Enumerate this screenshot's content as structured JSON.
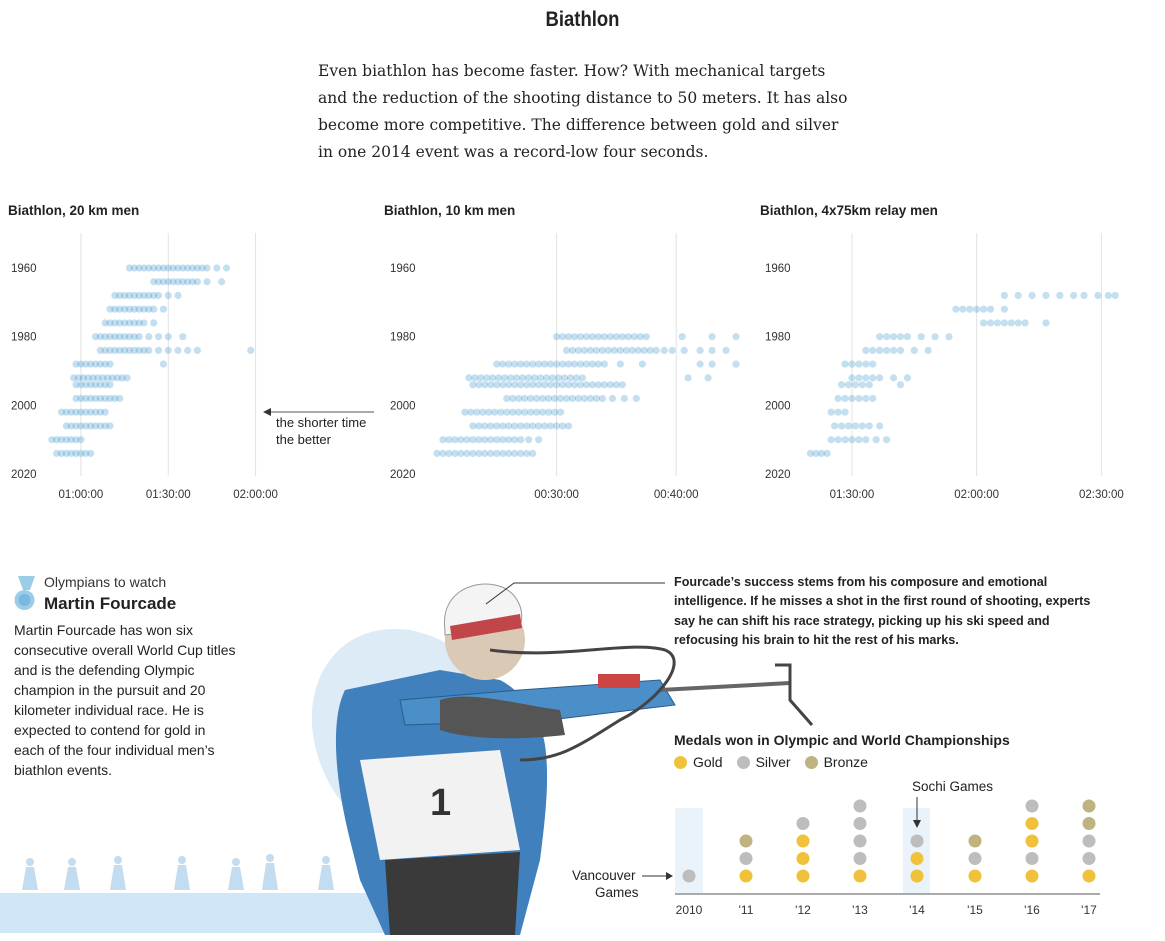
{
  "header": {
    "title": "Biathlon",
    "intro": "Even biathlon has become faster. How? With mechanical targets and the reduction of the shooting distance to 50 meters. It has also become more competitive. The difference between gold and silver in one 2014 event was a record-low four seconds."
  },
  "colors": {
    "dot": "#2a8bc4",
    "gold": "#f0c23c",
    "silver": "#bdbdbd",
    "bronze": "#bfb381",
    "athlete_blue": "#4a8fc8",
    "bg_wash": "#cfe3f2"
  },
  "chart_data": [
    {
      "type": "scatter",
      "title": "Biathlon, 20 km men",
      "x_unit": "race time (seconds)",
      "xticks": [
        "01:00:00",
        "01:30:00",
        "02:00:00"
      ],
      "xlim": [
        2880,
        9600
      ],
      "yticks": [
        "1960",
        "1980",
        "2000",
        "2020"
      ],
      "ylim": [
        1957,
        2020
      ],
      "grid": true,
      "annotation": {
        "line1": "the shorter time",
        "line2": "the better"
      },
      "years": [
        {
          "year": 1960,
          "times": [
            4600,
            4700,
            4800,
            4900,
            5000,
            5100,
            5200,
            5300,
            5400,
            5500,
            5600,
            5700,
            5800,
            5900,
            6000,
            6100,
            6200,
            6400,
            6600
          ]
        },
        {
          "year": 1964,
          "times": [
            5100,
            5200,
            5300,
            5400,
            5500,
            5600,
            5700,
            5800,
            5900,
            6000,
            6200,
            6500
          ]
        },
        {
          "year": 1968,
          "times": [
            4300,
            4400,
            4500,
            4600,
            4700,
            4800,
            4900,
            5000,
            5100,
            5200,
            5400,
            5600
          ]
        },
        {
          "year": 1972,
          "times": [
            4200,
            4300,
            4400,
            4500,
            4600,
            4700,
            4800,
            4900,
            5000,
            5100,
            5300
          ]
        },
        {
          "year": 1976,
          "times": [
            4100,
            4200,
            4300,
            4400,
            4500,
            4600,
            4700,
            4800,
            4900,
            5100
          ]
        },
        {
          "year": 1980,
          "times": [
            3900,
            4000,
            4100,
            4200,
            4300,
            4400,
            4500,
            4600,
            4700,
            4800,
            5000,
            5200,
            5400,
            5700
          ]
        },
        {
          "year": 1984,
          "times": [
            4000,
            4100,
            4200,
            4300,
            4400,
            4500,
            4600,
            4700,
            4800,
            4900,
            5000,
            5200,
            5400,
            5600,
            5800,
            6000,
            7100
          ]
        },
        {
          "year": 1988,
          "times": [
            3500,
            3600,
            3700,
            3800,
            3900,
            4000,
            4100,
            4200,
            5300
          ]
        },
        {
          "year": 1992,
          "times": [
            3450,
            3550,
            3650,
            3750,
            3850,
            3950,
            4050,
            4150,
            4250,
            4350,
            4450,
            4550
          ]
        },
        {
          "year": 1994,
          "times": [
            3500,
            3600,
            3700,
            3800,
            3900,
            4000,
            4100,
            4200
          ]
        },
        {
          "year": 1998,
          "times": [
            3500,
            3600,
            3700,
            3800,
            3900,
            4000,
            4100,
            4200,
            4300,
            4400
          ]
        },
        {
          "year": 2002,
          "times": [
            3200,
            3300,
            3400,
            3500,
            3600,
            3700,
            3800,
            3900,
            4000,
            4100
          ]
        },
        {
          "year": 2006,
          "times": [
            3300,
            3400,
            3500,
            3600,
            3700,
            3800,
            3900,
            4000,
            4100,
            4200
          ]
        },
        {
          "year": 2010,
          "times": [
            3000,
            3100,
            3200,
            3300,
            3400,
            3500,
            3600
          ]
        },
        {
          "year": 2014,
          "times": [
            3100,
            3200,
            3300,
            3400,
            3500,
            3600,
            3700,
            3800
          ]
        }
      ]
    },
    {
      "type": "scatter",
      "title": "Biathlon, 10 km men",
      "x_unit": "race time (seconds)",
      "xticks": [
        "00:30:00",
        "00:40:00"
      ],
      "xlim": [
        1140,
        2730
      ],
      "yticks": [
        "1960",
        "1980",
        "2000",
        "2020"
      ],
      "ylim": [
        1957,
        2020
      ],
      "grid": true,
      "years": [
        {
          "year": 1980,
          "times": [
            1800,
            1830,
            1860,
            1890,
            1920,
            1950,
            1980,
            2010,
            2040,
            2070,
            2100,
            2130,
            2160,
            2190,
            2220,
            2250,
            2430,
            2580,
            2700
          ]
        },
        {
          "year": 1984,
          "times": [
            1850,
            1880,
            1910,
            1940,
            1970,
            2000,
            2030,
            2060,
            2090,
            2120,
            2150,
            2180,
            2210,
            2240,
            2270,
            2300,
            2340,
            2380,
            2440,
            2520,
            2580,
            2650
          ]
        },
        {
          "year": 1988,
          "times": [
            1500,
            1530,
            1560,
            1590,
            1620,
            1650,
            1680,
            1710,
            1740,
            1770,
            1800,
            1830,
            1860,
            1890,
            1920,
            1950,
            1980,
            2010,
            2040,
            2120,
            2230,
            2520,
            2580,
            2700
          ]
        },
        {
          "year": 1992,
          "times": [
            1360,
            1390,
            1420,
            1450,
            1480,
            1510,
            1540,
            1570,
            1600,
            1630,
            1660,
            1690,
            1720,
            1750,
            1780,
            1810,
            1840,
            1870,
            1900,
            1930,
            2460,
            2560
          ]
        },
        {
          "year": 1994,
          "times": [
            1380,
            1410,
            1440,
            1470,
            1500,
            1530,
            1560,
            1590,
            1620,
            1650,
            1680,
            1710,
            1740,
            1770,
            1800,
            1830,
            1860,
            1890,
            1920,
            1950,
            1980,
            2010,
            2040,
            2070,
            2100,
            2130
          ]
        },
        {
          "year": 1998,
          "times": [
            1550,
            1580,
            1610,
            1640,
            1670,
            1700,
            1730,
            1760,
            1790,
            1820,
            1850,
            1880,
            1910,
            1940,
            1970,
            2000,
            2030,
            2080,
            2140,
            2200
          ]
        },
        {
          "year": 2002,
          "times": [
            1340,
            1370,
            1400,
            1430,
            1460,
            1490,
            1520,
            1550,
            1580,
            1610,
            1640,
            1670,
            1700,
            1730,
            1760,
            1790,
            1820
          ]
        },
        {
          "year": 2006,
          "times": [
            1380,
            1410,
            1440,
            1470,
            1500,
            1530,
            1560,
            1590,
            1620,
            1650,
            1680,
            1710,
            1740,
            1770,
            1800,
            1830,
            1860
          ]
        },
        {
          "year": 2010,
          "times": [
            1230,
            1260,
            1290,
            1320,
            1350,
            1380,
            1410,
            1440,
            1470,
            1500,
            1530,
            1560,
            1590,
            1620,
            1660,
            1710
          ]
        },
        {
          "year": 2014,
          "times": [
            1200,
            1230,
            1260,
            1290,
            1320,
            1350,
            1380,
            1410,
            1440,
            1470,
            1500,
            1530,
            1560,
            1590,
            1620,
            1650,
            1680
          ]
        }
      ]
    },
    {
      "type": "scatter",
      "title": "Biathlon, 4x75km relay men",
      "x_unit": "race time (seconds)",
      "xticks": [
        "01:30:00",
        "02:00:00",
        "02:30:00"
      ],
      "xlim": [
        4650,
        9240
      ],
      "yticks": [
        "1960",
        "1980",
        "2000",
        "2020"
      ],
      "ylim": [
        1957,
        2020
      ],
      "grid": true,
      "years": [
        {
          "year": 1968,
          "times": [
            7600,
            7800,
            8000,
            8200,
            8400,
            8600,
            8750,
            8950,
            9100,
            9200
          ]
        },
        {
          "year": 1972,
          "times": [
            6900,
            7000,
            7100,
            7200,
            7300,
            7400,
            7600
          ]
        },
        {
          "year": 1976,
          "times": [
            7300,
            7400,
            7500,
            7600,
            7700,
            7800,
            7900,
            8200
          ]
        },
        {
          "year": 1980,
          "times": [
            5800,
            5900,
            6000,
            6100,
            6200,
            6400,
            6600,
            6800
          ]
        },
        {
          "year": 1984,
          "times": [
            5600,
            5700,
            5800,
            5900,
            6000,
            6100,
            6300,
            6500
          ]
        },
        {
          "year": 1988,
          "times": [
            5300,
            5400,
            5500,
            5600,
            5700
          ]
        },
        {
          "year": 1992,
          "times": [
            5400,
            5500,
            5600,
            5700,
            5800,
            6000,
            6200
          ]
        },
        {
          "year": 1994,
          "times": [
            5250,
            5350,
            5450,
            5550,
            5650,
            6100
          ]
        },
        {
          "year": 1998,
          "times": [
            5200,
            5300,
            5400,
            5500,
            5600,
            5700
          ]
        },
        {
          "year": 2002,
          "times": [
            5100,
            5200,
            5300
          ]
        },
        {
          "year": 2006,
          "times": [
            5150,
            5250,
            5350,
            5450,
            5550,
            5650,
            5800
          ]
        },
        {
          "year": 2010,
          "times": [
            5100,
            5200,
            5300,
            5400,
            5500,
            5600,
            5750,
            5900
          ]
        },
        {
          "year": 2014,
          "times": [
            4800,
            4880,
            4960,
            5040
          ]
        }
      ]
    },
    {
      "type": "dot-matrix",
      "title": "Medals won in Olympic and World Championships",
      "legend": {
        "gold": "Gold",
        "silver": "Silver",
        "bronze": "Bronze"
      },
      "categories": [
        "2010",
        "'11",
        "'12",
        "'13",
        "'14",
        "'15",
        "'16",
        "'17"
      ],
      "medals": [
        [
          "silver"
        ],
        [
          "gold",
          "silver",
          "bronze"
        ],
        [
          "gold",
          "gold",
          "gold",
          "silver"
        ],
        [
          "gold",
          "silver",
          "silver",
          "silver",
          "silver"
        ],
        [
          "gold",
          "gold",
          "silver"
        ],
        [
          "gold",
          "silver",
          "bronze"
        ],
        [
          "gold",
          "silver",
          "gold",
          "gold",
          "silver"
        ],
        [
          "gold",
          "silver",
          "silver",
          "bronze",
          "bronze"
        ]
      ],
      "annotations": {
        "vancouver_line1": "Vancouver",
        "vancouver_line2": "Games",
        "sochi": "Sochi Games"
      }
    }
  ],
  "olympian": {
    "kicker": "Olympians to watch",
    "name": "Martin Fourcade",
    "bio": "Martin Fourcade has won six consecutive overall World Cup titles and is the defending Olympic champion in the pursuit and 20 kilometer individual race. He is expected to contend for gold in each of the four individual men’s biathlon events."
  },
  "callout": "Fourcade’s success stems from his composure and emotional intelligence. If he misses a shot in the first round of shooting, experts say he can shift his race strategy, picking up his ski speed and refocusing his brain to hit the rest of his marks."
}
